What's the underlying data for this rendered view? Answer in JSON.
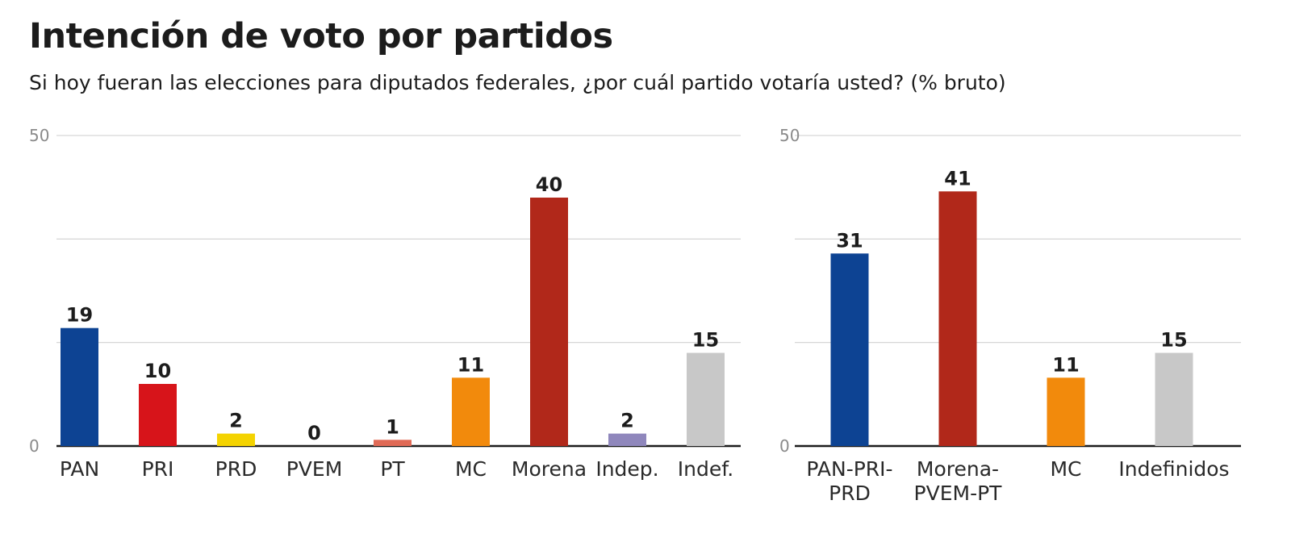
{
  "title": "Intención de voto por partidos",
  "subtitle": "Si hoy fueran las elecciones para diputados federales, ¿por cuál partido votaría usted? (% bruto)",
  "chart_data": [
    {
      "type": "bar",
      "title": "Intención de voto por partidos",
      "categories": [
        [
          "PAN"
        ],
        [
          "PRI"
        ],
        [
          "PRD"
        ],
        [
          "PVEM"
        ],
        [
          "PT"
        ],
        [
          "MC"
        ],
        [
          "Morena"
        ],
        [
          "Indep."
        ],
        [
          "Indef."
        ]
      ],
      "values": [
        19,
        10,
        2,
        0,
        1,
        11,
        40,
        2,
        15
      ],
      "colors": [
        "#0d4393",
        "#d7141a",
        "#f4d300",
        "#2e9e3e",
        "#e06a56",
        "#f28a0c",
        "#b1281a",
        "#8f87bc",
        "#c8c8c8"
      ],
      "ylim": [
        0,
        50
      ],
      "tick_labels": [
        "0",
        "50"
      ],
      "gridlines": [
        0,
        16.67,
        33.33,
        50
      ]
    },
    {
      "type": "bar",
      "title": "",
      "categories": [
        [
          "PAN-PRI-",
          "PRD"
        ],
        [
          "Morena-",
          "PVEM-PT"
        ],
        [
          "MC"
        ],
        [
          "Indefinidos"
        ]
      ],
      "values": [
        31,
        41,
        11,
        15
      ],
      "colors": [
        "#0d4393",
        "#b1281a",
        "#f28a0c",
        "#c8c8c8"
      ],
      "ylim": [
        0,
        50
      ],
      "tick_labels": [
        "0",
        "50"
      ],
      "gridlines": [
        0,
        16.67,
        33.33,
        50
      ]
    }
  ]
}
